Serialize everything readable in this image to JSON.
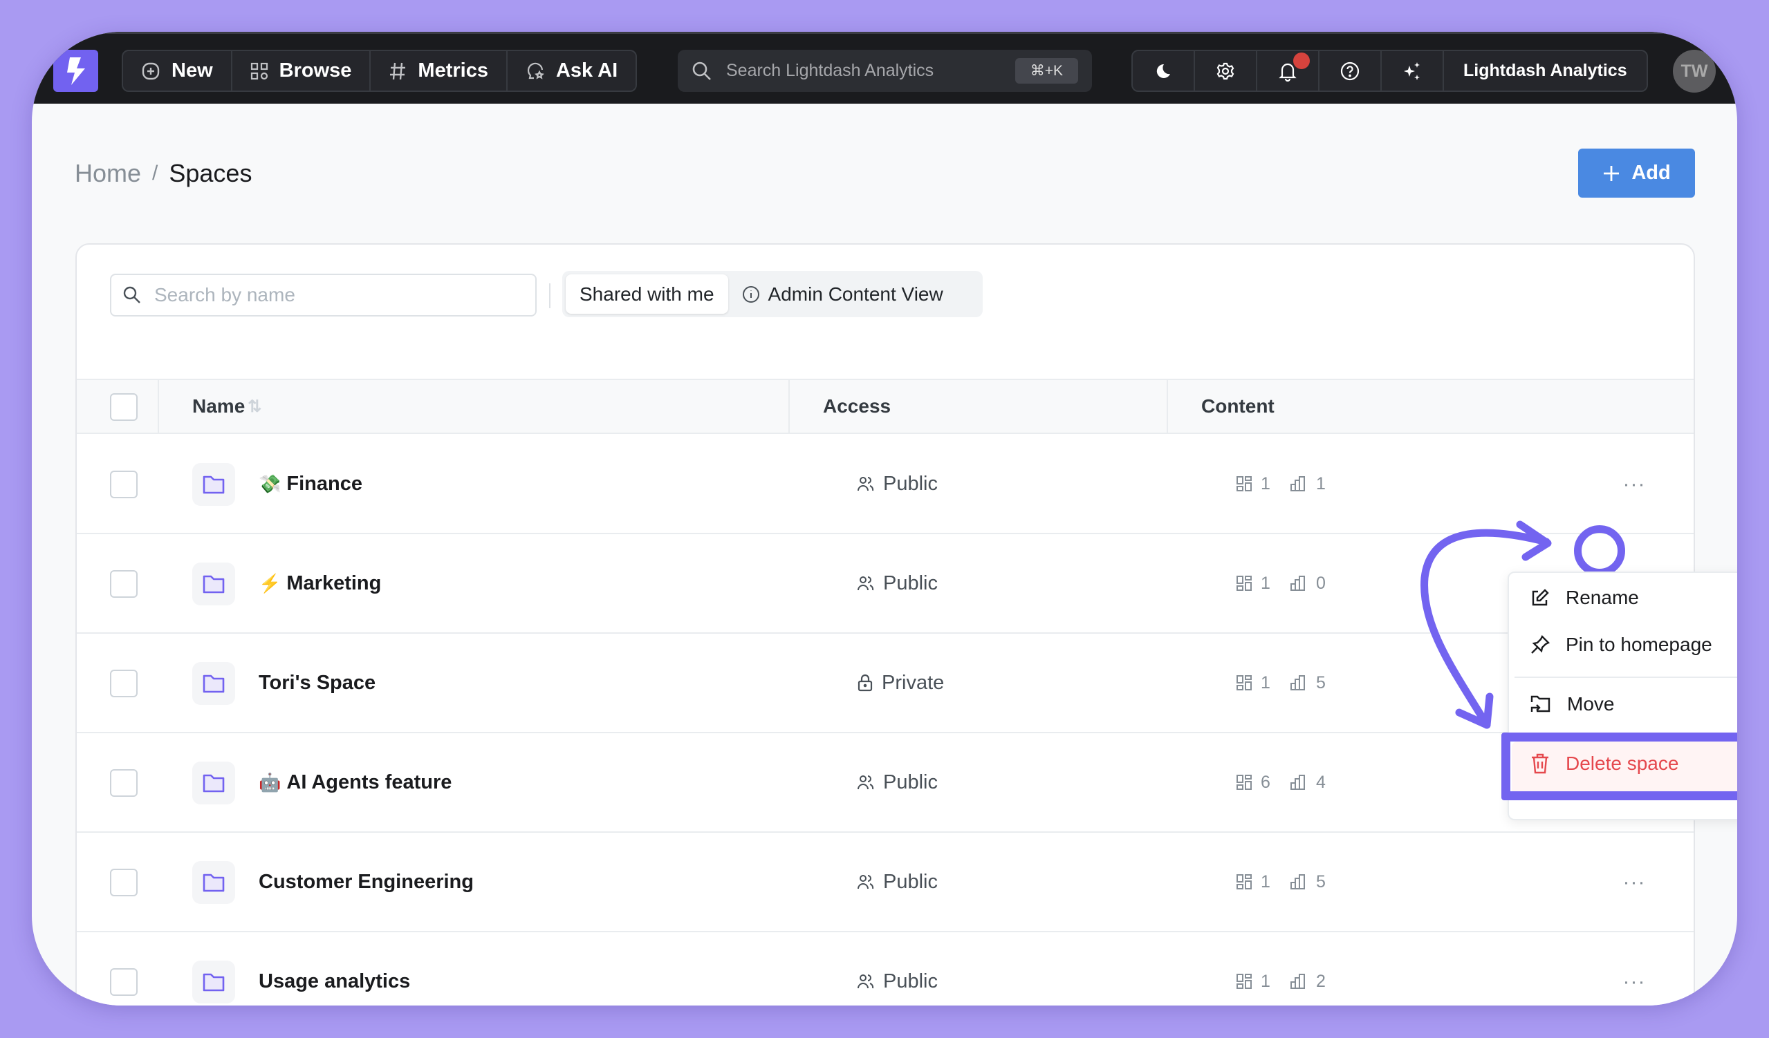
{
  "nav": {
    "items": [
      {
        "label": "New",
        "icon": "plus-square-icon"
      },
      {
        "label": "Browse",
        "icon": "grid-icon"
      },
      {
        "label": "Metrics",
        "icon": "hash-icon"
      },
      {
        "label": "Ask AI",
        "icon": "ai-chat-icon"
      }
    ],
    "search_placeholder": "Search Lightdash Analytics",
    "search_shortcut": "⌘+K",
    "org_name": "Lightdash Analytics",
    "avatar_initials": "TW",
    "notification_dot_color": "#e03131"
  },
  "breadcrumb": {
    "home": "Home",
    "separator": "/",
    "current": "Spaces"
  },
  "add_button": "Add",
  "toolbar": {
    "search_placeholder": "Search by name",
    "segments": [
      "Shared with me",
      "Admin Content View"
    ],
    "active_segment": "Shared with me"
  },
  "table": {
    "columns": [
      "Name",
      "Access",
      "Content"
    ],
    "rows": [
      {
        "emoji": "💸",
        "name": "Finance",
        "access": "Public",
        "dashboards": "1",
        "charts": "1"
      },
      {
        "emoji": "⚡",
        "name": "Marketing",
        "access": "Public",
        "dashboards": "1",
        "charts": "0"
      },
      {
        "emoji": "",
        "name": "Tori's Space",
        "access": "Private",
        "dashboards": "1",
        "charts": "5"
      },
      {
        "emoji": "🤖",
        "name": "AI Agents feature",
        "access": "Public",
        "dashboards": "6",
        "charts": "4"
      },
      {
        "emoji": "",
        "name": "Customer Engineering",
        "access": "Public",
        "dashboards": "1",
        "charts": "5"
      },
      {
        "emoji": "",
        "name": "Usage analytics",
        "access": "Public",
        "dashboards": "1",
        "charts": "2"
      }
    ]
  },
  "context_menu": {
    "rename": "Rename",
    "pin": "Pin to homepage",
    "move": "Move",
    "delete": "Delete space"
  },
  "colors": {
    "accent": "#7262f0",
    "highlight": "#7364f0",
    "danger": "#e5484d",
    "primary_button": "#4a89e2"
  }
}
